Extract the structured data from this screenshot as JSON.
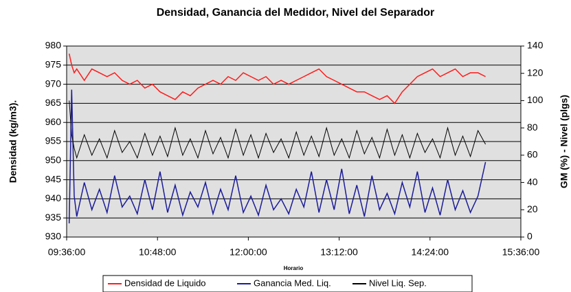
{
  "chart_data": {
    "type": "line",
    "title": "Densidad, Ganancia del Medidor, Nivel del Separador",
    "x_label": "Horario",
    "y_label": "Densidad (kg/m3).",
    "y2_label": "GM (%) - Nivel (plgs)",
    "x": [
      "09:38:00",
      "09:40:00",
      "09:42:00",
      "09:44:00",
      "09:50:00",
      "09:56:00",
      "10:02:00",
      "10:08:00",
      "10:14:00",
      "10:20:00",
      "10:26:00",
      "10:32:00",
      "10:38:00",
      "10:44:00",
      "10:50:00",
      "10:56:00",
      "11:02:00",
      "11:08:00",
      "11:14:00",
      "11:20:00",
      "11:26:00",
      "11:32:00",
      "11:38:00",
      "11:44:00",
      "11:50:00",
      "11:56:00",
      "12:02:00",
      "12:08:00",
      "12:14:00",
      "12:20:00",
      "12:26:00",
      "12:32:00",
      "12:38:00",
      "12:44:00",
      "12:50:00",
      "12:56:00",
      "13:02:00",
      "13:08:00",
      "13:14:00",
      "13:20:00",
      "13:26:00",
      "13:32:00",
      "13:38:00",
      "13:44:00",
      "13:50:00",
      "13:56:00",
      "14:02:00",
      "14:08:00",
      "14:14:00",
      "14:20:00",
      "14:26:00",
      "14:32:00",
      "14:38:00",
      "14:44:00",
      "14:50:00",
      "14:56:00",
      "15:02:00",
      "15:08:00"
    ],
    "xlim": [
      "09:36:00",
      "15:36:00"
    ],
    "xticks": [
      "09:36:00",
      "10:48:00",
      "12:00:00",
      "13:12:00",
      "14:24:00",
      "15:36:00"
    ],
    "ylim": [
      930,
      980
    ],
    "yticks": [
      930,
      935,
      940,
      945,
      950,
      955,
      960,
      965,
      970,
      975,
      980
    ],
    "y2lim": [
      0,
      140
    ],
    "y2ticks": [
      0,
      20,
      40,
      60,
      80,
      100,
      120,
      140
    ],
    "grid": true,
    "legend": "bottom",
    "series": [
      {
        "name": "Densidad de Liquido",
        "color": "#ff1a1a",
        "values": [
          978,
          975,
          973,
          974,
          971,
          974,
          973,
          972,
          973,
          971,
          970,
          971,
          969,
          970,
          968,
          967,
          966,
          968,
          967,
          969,
          970,
          971,
          970,
          972,
          971,
          973,
          972,
          971,
          972,
          970,
          971,
          970,
          971,
          972,
          973,
          974,
          972,
          971,
          970,
          969,
          968,
          968,
          967,
          966,
          967,
          965,
          968,
          970,
          972,
          973,
          974,
          972,
          973,
          974,
          972,
          973,
          973,
          972
        ]
      },
      {
        "name": "Ganancia Med. Liq.",
        "color": "#1a1a99",
        "axis": "y2",
        "values": [
          10,
          108,
          30,
          15,
          40,
          20,
          35,
          18,
          45,
          22,
          30,
          17,
          42,
          20,
          48,
          18,
          38,
          16,
          33,
          22,
          40,
          17,
          35,
          20,
          45,
          18,
          30,
          16,
          38,
          20,
          28,
          17,
          35,
          22,
          48,
          18,
          42,
          20,
          50,
          17,
          38,
          15,
          45,
          20,
          32,
          17,
          40,
          22,
          48,
          18,
          36,
          16,
          42,
          20,
          34,
          18,
          30,
          55
        ]
      },
      {
        "name": "Nivel Liq. Sep.",
        "color": "#000000",
        "axis": "y2",
        "values": [
          100,
          75,
          65,
          58,
          75,
          60,
          72,
          58,
          78,
          62,
          70,
          58,
          76,
          60,
          74,
          59,
          80,
          60,
          72,
          58,
          78,
          61,
          73,
          58,
          79,
          60,
          75,
          58,
          76,
          62,
          72,
          58,
          77,
          60,
          74,
          59,
          80,
          60,
          72,
          58,
          78,
          61,
          73,
          58,
          79,
          60,
          75,
          58,
          76,
          62,
          72,
          58,
          80,
          60,
          74,
          59,
          78,
          68
        ]
      }
    ]
  }
}
